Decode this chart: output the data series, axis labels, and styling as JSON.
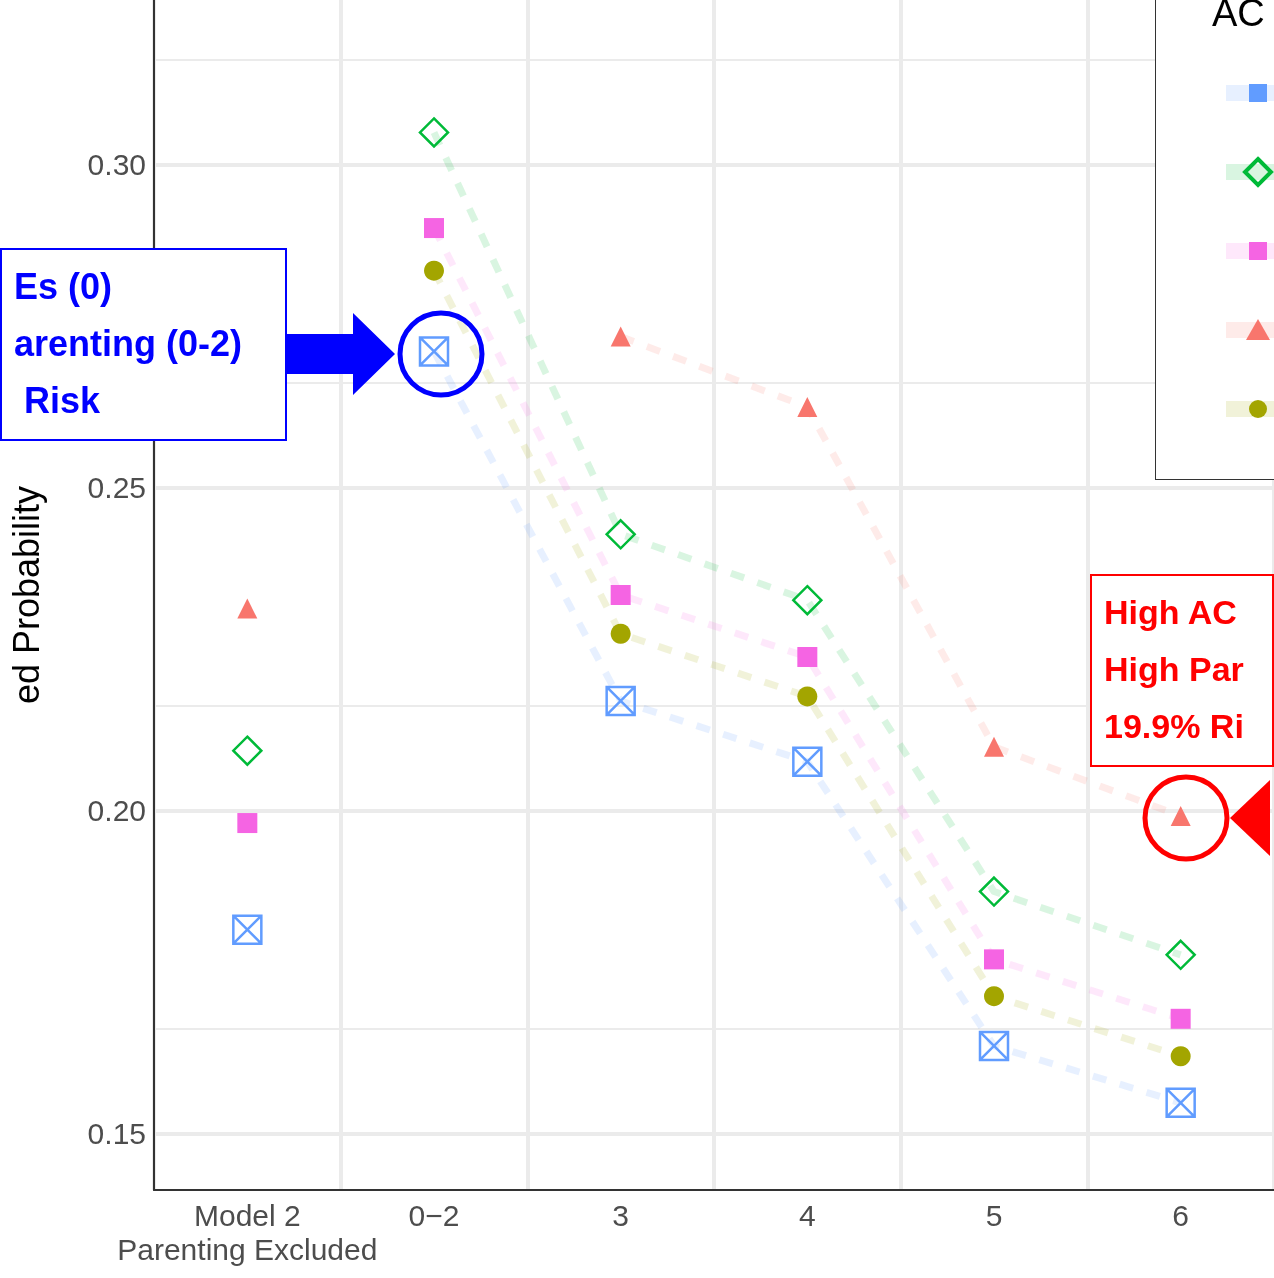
{
  "chart_data": {
    "type": "line",
    "ylabel": "ed Probability",
    "legend_title": "AC",
    "categories": [
      "Model 2\nParenting Excluded",
      "0−2",
      "3",
      "4",
      "5",
      "6"
    ],
    "series": [
      {
        "type": "scatter",
        "color": "#619cff",
        "marker": "cross",
        "values": [
          0.1816,
          null,
          null,
          null,
          null,
          null
        ]
      },
      {
        "type": "scatter",
        "color": "#00ba38",
        "marker": "diamond",
        "values": [
          0.2093,
          null,
          null,
          null,
          null,
          null
        ]
      },
      {
        "type": "scatter",
        "color": "#f564e3",
        "marker": "square",
        "values": [
          0.1981,
          null,
          null,
          null,
          null,
          null
        ]
      },
      {
        "type": "scatter",
        "color": "#f8766d",
        "marker": "triangle",
        "values": [
          0.2313,
          null,
          null,
          null,
          null,
          null
        ]
      },
      {
        "color": "#619cff",
        "marker": "cross",
        "line_style": "dashed",
        "values": [
          null,
          0.2711,
          0.217,
          0.2076,
          0.1636,
          0.1548
        ]
      },
      {
        "color": "#00ba38",
        "marker": "diamond",
        "line_style": "dashed",
        "values": [
          null,
          0.305,
          0.2428,
          0.2326,
          0.1875,
          0.1777
        ]
      },
      {
        "color": "#f564e3",
        "marker": "square",
        "line_style": "dashed",
        "values": [
          null,
          0.2902,
          0.2334,
          0.2238,
          0.177,
          0.1678
        ]
      },
      {
        "color": "#f8766d",
        "marker": "triangle",
        "line_style": "dashed",
        "values": [
          null,
          null,
          0.2734,
          0.2625,
          0.2099,
          0.1992
        ]
      },
      {
        "color": "#a3a500",
        "marker": "circle",
        "line_style": "dashed",
        "values": [
          null,
          0.2836,
          0.2274,
          0.2177,
          0.1713,
          0.162
        ]
      }
    ],
    "ylim": [
      0.1413,
      0.3255
    ],
    "yticks": [
      {
        "value": 0.15,
        "label": "0.15"
      },
      {
        "value": 0.2,
        "label": "0.20"
      },
      {
        "value": 0.25,
        "label": "0.25"
      },
      {
        "value": 0.3,
        "label": "0.30"
      }
    ],
    "grid": true,
    "annotations": [
      "Es (0)\narenting (0-2)\n Risk",
      "High AC\nHigh Par\n19.9% Ri"
    ]
  }
}
